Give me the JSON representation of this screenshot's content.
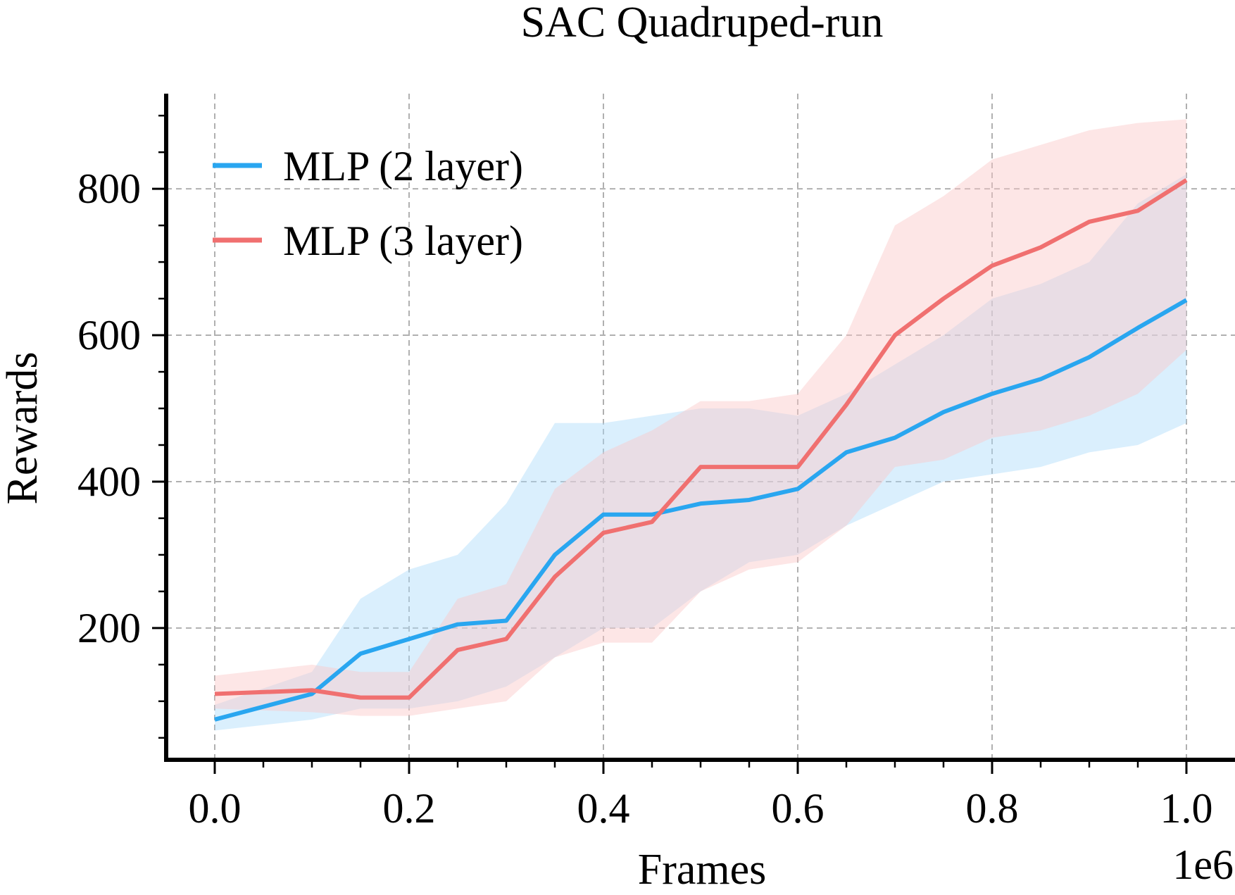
{
  "chart_data": {
    "type": "line",
    "title": "SAC Quadruped-run",
    "xlabel": "Frames",
    "ylabel": "Rewards",
    "x_offset_label": "1e6",
    "xlim": [
      -0.05,
      1.05
    ],
    "ylim": [
      20,
      930
    ],
    "xticks": [
      0.0,
      0.2,
      0.4,
      0.6,
      0.8,
      1.0
    ],
    "xtick_labels": [
      "0.0",
      "0.2",
      "0.4",
      "0.6",
      "0.8",
      "1.0"
    ],
    "yticks": [
      200,
      400,
      600,
      800
    ],
    "ytick_labels": [
      "200",
      "400",
      "600",
      "800"
    ],
    "grid": true,
    "legend_position": "upper-left",
    "x": [
      0.0,
      0.1,
      0.15,
      0.2,
      0.25,
      0.3,
      0.35,
      0.4,
      0.45,
      0.5,
      0.55,
      0.6,
      0.65,
      0.7,
      0.75,
      0.8,
      0.85,
      0.9,
      0.95,
      1.0
    ],
    "series": [
      {
        "name": "MLP (2 layer)",
        "color": "#29a6f0",
        "band_color": "#aedcfa",
        "values": [
          75,
          110,
          165,
          185,
          205,
          210,
          300,
          355,
          355,
          370,
          375,
          390,
          440,
          460,
          495,
          520,
          540,
          570,
          610,
          648
        ],
        "lower": [
          60,
          75,
          90,
          90,
          100,
          120,
          160,
          200,
          200,
          250,
          290,
          300,
          340,
          370,
          400,
          410,
          420,
          440,
          450,
          480
        ],
        "upper": [
          95,
          140,
          240,
          280,
          300,
          370,
          480,
          480,
          490,
          500,
          500,
          490,
          520,
          560,
          600,
          650,
          670,
          700,
          780,
          820
        ]
      },
      {
        "name": "MLP (3 layer)",
        "color": "#f07070",
        "band_color": "#fbc8c8",
        "values": [
          110,
          115,
          105,
          105,
          170,
          185,
          270,
          330,
          345,
          420,
          420,
          420,
          505,
          600,
          650,
          695,
          720,
          755,
          770,
          812
        ],
        "lower": [
          90,
          85,
          80,
          80,
          90,
          100,
          160,
          180,
          180,
          250,
          280,
          290,
          340,
          420,
          430,
          460,
          470,
          490,
          520,
          580
        ],
        "upper": [
          135,
          150,
          140,
          140,
          240,
          260,
          390,
          440,
          470,
          510,
          510,
          520,
          600,
          750,
          790,
          840,
          860,
          880,
          890,
          895
        ]
      }
    ]
  }
}
